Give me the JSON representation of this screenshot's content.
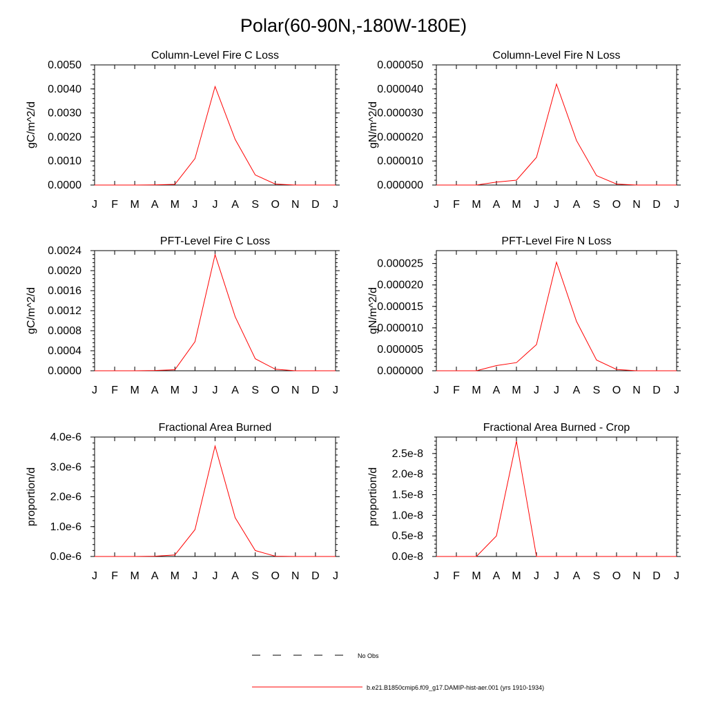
{
  "figure": {
    "title": "Polar(60-90N,-180W-180E)"
  },
  "legend": {
    "items": [
      {
        "label": "No Obs",
        "style": "dashed",
        "color": "#000000"
      },
      {
        "label": "b.e21.B1850cmip6.f09_g17.DAMIP-hist-aer.001 (yrs 1910-1934)",
        "style": "solid",
        "color": "#ff0000"
      }
    ]
  },
  "chart_data": [
    {
      "type": "line",
      "title": "Column-Level Fire C Loss",
      "ylabel": "gC/m^2/d",
      "categories": [
        "J",
        "F",
        "M",
        "A",
        "M",
        "J",
        "J",
        "A",
        "S",
        "O",
        "N",
        "D",
        "J"
      ],
      "ylim": [
        0,
        0.005
      ],
      "yticks": [
        "0.0000",
        "0.0010",
        "0.0020",
        "0.0030",
        "0.0040",
        "0.0050"
      ],
      "series": [
        {
          "color": "#ff0000",
          "values": [
            0,
            0,
            0,
            1e-05,
            3e-05,
            0.0011,
            0.0041,
            0.0019,
            0.00042,
            4e-05,
            0,
            0,
            0
          ]
        }
      ]
    },
    {
      "type": "line",
      "title": "Column-Level Fire N Loss",
      "ylabel": "gN/m^2/d",
      "categories": [
        "J",
        "F",
        "M",
        "A",
        "M",
        "J",
        "J",
        "A",
        "S",
        "O",
        "N",
        "D",
        "J"
      ],
      "ylim": [
        0,
        5e-05
      ],
      "yticks": [
        "0.000000",
        "0.000010",
        "0.000020",
        "0.000030",
        "0.000040",
        "0.000050"
      ],
      "series": [
        {
          "color": "#ff0000",
          "values": [
            0,
            0,
            0,
            1.2e-06,
            2e-06,
            1.15e-05,
            4.2e-05,
            1.85e-05,
            3.9e-06,
            4e-07,
            0,
            0,
            0
          ]
        }
      ]
    },
    {
      "type": "line",
      "title": "PFT-Level Fire C Loss",
      "ylabel": "gC/m^2/d",
      "categories": [
        "J",
        "F",
        "M",
        "A",
        "M",
        "J",
        "J",
        "A",
        "S",
        "O",
        "N",
        "D",
        "J"
      ],
      "ylim": [
        0,
        0.0024
      ],
      "yticks": [
        "0.0000",
        "0.0004",
        "0.0008",
        "0.0012",
        "0.0016",
        "0.0020",
        "0.0024"
      ],
      "series": [
        {
          "color": "#ff0000",
          "values": [
            0,
            0,
            0,
            5e-06,
            2e-05,
            0.00058,
            0.00232,
            0.00108,
            0.00024,
            3e-05,
            0,
            0,
            0
          ]
        }
      ]
    },
    {
      "type": "line",
      "title": "PFT-Level Fire N Loss",
      "ylabel": "gN/m^2/d",
      "categories": [
        "J",
        "F",
        "M",
        "A",
        "M",
        "J",
        "J",
        "A",
        "S",
        "O",
        "N",
        "D",
        "J"
      ],
      "ylim": [
        0,
        2.8e-05
      ],
      "yticks": [
        "0.000000",
        "0.000005",
        "0.000010",
        "0.000015",
        "0.000020",
        "0.000025"
      ],
      "ytickvalues": [
        0,
        5e-06,
        1e-05,
        1.5e-05,
        2e-05,
        2.5e-05
      ],
      "series": [
        {
          "color": "#ff0000",
          "values": [
            0,
            0,
            0,
            1.2e-06,
            1.9e-06,
            6.1e-06,
            2.53e-05,
            1.15e-05,
            2.5e-06,
            3e-07,
            0,
            0,
            0
          ]
        }
      ]
    },
    {
      "type": "line",
      "title": "Fractional Area Burned",
      "ylabel": "proportion/d",
      "categories": [
        "J",
        "F",
        "M",
        "A",
        "M",
        "J",
        "J",
        "A",
        "S",
        "O",
        "N",
        "D",
        "J"
      ],
      "ylim": [
        0,
        4e-06
      ],
      "yticks": [
        "0.0e-6",
        "1.0e-6",
        "2.0e-6",
        "3.0e-6",
        "4.0e-6"
      ],
      "series": [
        {
          "color": "#ff0000",
          "values": [
            0,
            0,
            0,
            1e-08,
            5e-08,
            9e-07,
            3.7e-06,
            1.3e-06,
            2e-07,
            1e-08,
            0,
            0,
            0
          ]
        }
      ]
    },
    {
      "type": "line",
      "title": "Fractional Area Burned - Crop",
      "ylabel": "proportion/d",
      "categories": [
        "J",
        "F",
        "M",
        "A",
        "M",
        "J",
        "J",
        "A",
        "S",
        "O",
        "N",
        "D",
        "J"
      ],
      "ylim": [
        0,
        2.9e-08
      ],
      "yticks": [
        "0.0e-8",
        "0.5e-8",
        "1.0e-8",
        "1.5e-8",
        "2.0e-8",
        "2.5e-8"
      ],
      "ytickvalues": [
        0,
        5e-09,
        1e-08,
        1.5e-08,
        2e-08,
        2.5e-08
      ],
      "series": [
        {
          "color": "#ff0000",
          "values": [
            0,
            0,
            0,
            5e-09,
            2.8e-08,
            0,
            0,
            0,
            0,
            0,
            0,
            0,
            0
          ]
        }
      ]
    }
  ]
}
